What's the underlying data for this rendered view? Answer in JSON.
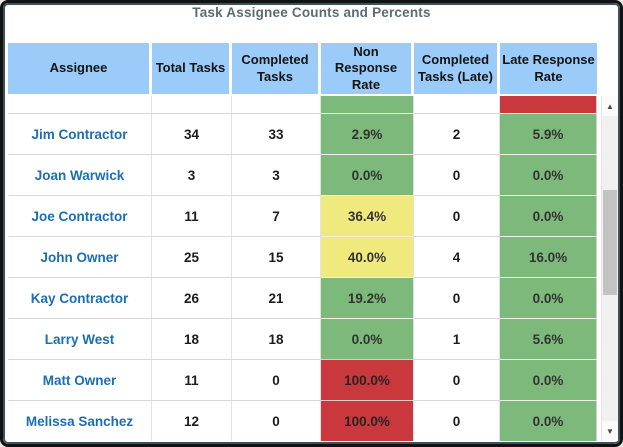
{
  "window": {
    "title": "Task Assignee Counts and Percents"
  },
  "colors": {
    "header_bg": "#9BCBF8",
    "green": "#7DB97A",
    "yellow": "#F0E97E",
    "red": "#C8383C",
    "assignee_link": "#1B6EB5",
    "title_text": "#5C6B75",
    "frame_inner": "#3E5259"
  },
  "table": {
    "columns": [
      {
        "label": "Assignee"
      },
      {
        "label": "Total Tasks"
      },
      {
        "label": "Completed Tasks"
      },
      {
        "label": "Non Response Rate"
      },
      {
        "label": "Completed Tasks (Late)"
      },
      {
        "label": "Late Response Rate"
      }
    ],
    "partial_row": {
      "non_response_tone": "green",
      "late_response_tone": "red"
    },
    "rows": [
      {
        "assignee": "Jim Contractor",
        "total": "34",
        "completed": "33",
        "non_response_rate": "2.9%",
        "non_response_tone": "green",
        "completed_late": "2",
        "late_response_rate": "5.9%",
        "late_response_tone": "green"
      },
      {
        "assignee": "Joan Warwick",
        "total": "3",
        "completed": "3",
        "non_response_rate": "0.0%",
        "non_response_tone": "green",
        "completed_late": "0",
        "late_response_rate": "0.0%",
        "late_response_tone": "green"
      },
      {
        "assignee": "Joe Contractor",
        "total": "11",
        "completed": "7",
        "non_response_rate": "36.4%",
        "non_response_tone": "yellow",
        "completed_late": "0",
        "late_response_rate": "0.0%",
        "late_response_tone": "green"
      },
      {
        "assignee": "John Owner",
        "total": "25",
        "completed": "15",
        "non_response_rate": "40.0%",
        "non_response_tone": "yellow",
        "completed_late": "4",
        "late_response_rate": "16.0%",
        "late_response_tone": "green"
      },
      {
        "assignee": "Kay Contractor",
        "total": "26",
        "completed": "21",
        "non_response_rate": "19.2%",
        "non_response_tone": "green",
        "completed_late": "0",
        "late_response_rate": "0.0%",
        "late_response_tone": "green"
      },
      {
        "assignee": "Larry West",
        "total": "18",
        "completed": "18",
        "non_response_rate": "0.0%",
        "non_response_tone": "green",
        "completed_late": "1",
        "late_response_rate": "5.6%",
        "late_response_tone": "green"
      },
      {
        "assignee": "Matt Owner",
        "total": "11",
        "completed": "0",
        "non_response_rate": "100.0%",
        "non_response_tone": "red",
        "completed_late": "0",
        "late_response_rate": "0.0%",
        "late_response_tone": "green"
      },
      {
        "assignee": "Melissa Sanchez",
        "total": "12",
        "completed": "0",
        "non_response_rate": "100.0%",
        "non_response_tone": "red",
        "completed_late": "0",
        "late_response_rate": "0.0%",
        "late_response_tone": "green"
      }
    ]
  },
  "scrollbar": {
    "up_icon": "▲",
    "down_icon": "▼"
  }
}
